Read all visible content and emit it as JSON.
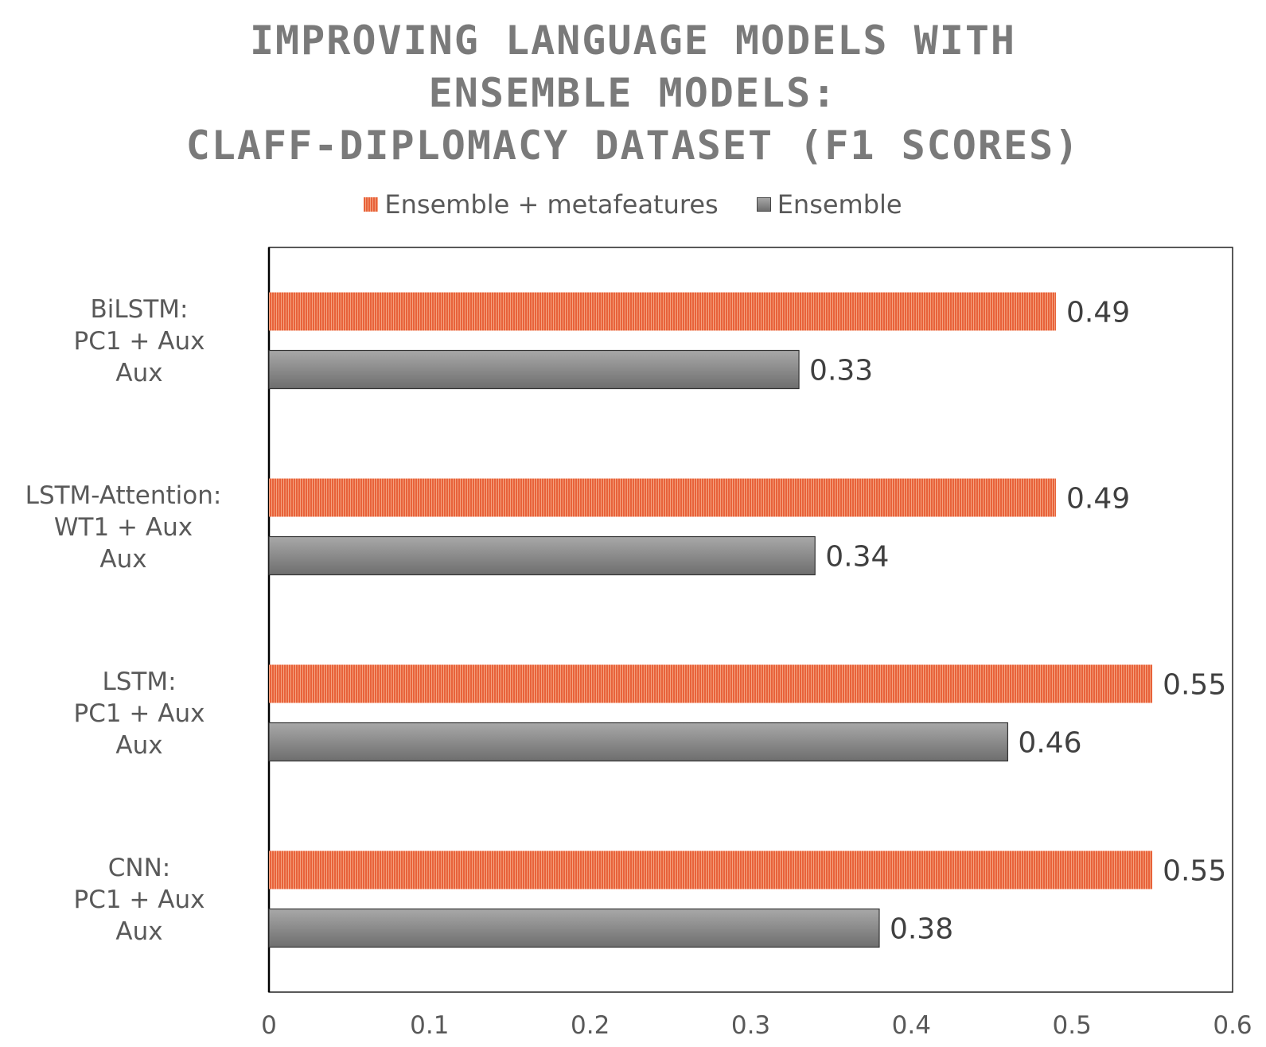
{
  "chart_data": {
    "type": "bar",
    "orientation": "horizontal",
    "title_lines": [
      "IMPROVING LANGUAGE MODELS WITH",
      "ENSEMBLE MODELS:",
      "CLAFF-DIPLOMACY DATASET (F1 SCORES)"
    ],
    "categories": [
      {
        "lines": [
          "BiLSTM:",
          "PC1 + Aux",
          "Aux"
        ]
      },
      {
        "lines": [
          "LSTM-Attention:",
          "WT1 + Aux",
          "Aux"
        ]
      },
      {
        "lines": [
          "LSTM:",
          "PC1 + Aux",
          "Aux"
        ]
      },
      {
        "lines": [
          "CNN:",
          "PC1 + Aux",
          "Aux"
        ]
      }
    ],
    "series": [
      {
        "name": "Ensemble + metafeatures",
        "color": "#e8623a",
        "values": [
          0.49,
          0.49,
          0.55,
          0.55
        ],
        "labels": [
          "0.49",
          "0.49",
          "0.55",
          "0.55"
        ]
      },
      {
        "name": "Ensemble",
        "color": "#8c8c8c",
        "values": [
          0.33,
          0.34,
          0.46,
          0.38
        ],
        "labels": [
          "0.33",
          "0.34",
          "0.46",
          "0.38"
        ]
      }
    ],
    "xlim": [
      0,
      0.6
    ],
    "xticks": [
      0,
      0.1,
      0.2,
      0.3,
      0.4,
      0.5,
      0.6
    ],
    "xtick_labels": [
      "0",
      "0.1",
      "0.2",
      "0.3",
      "0.4",
      "0.5",
      "0.6"
    ],
    "legend_position": "top",
    "grid": false
  }
}
